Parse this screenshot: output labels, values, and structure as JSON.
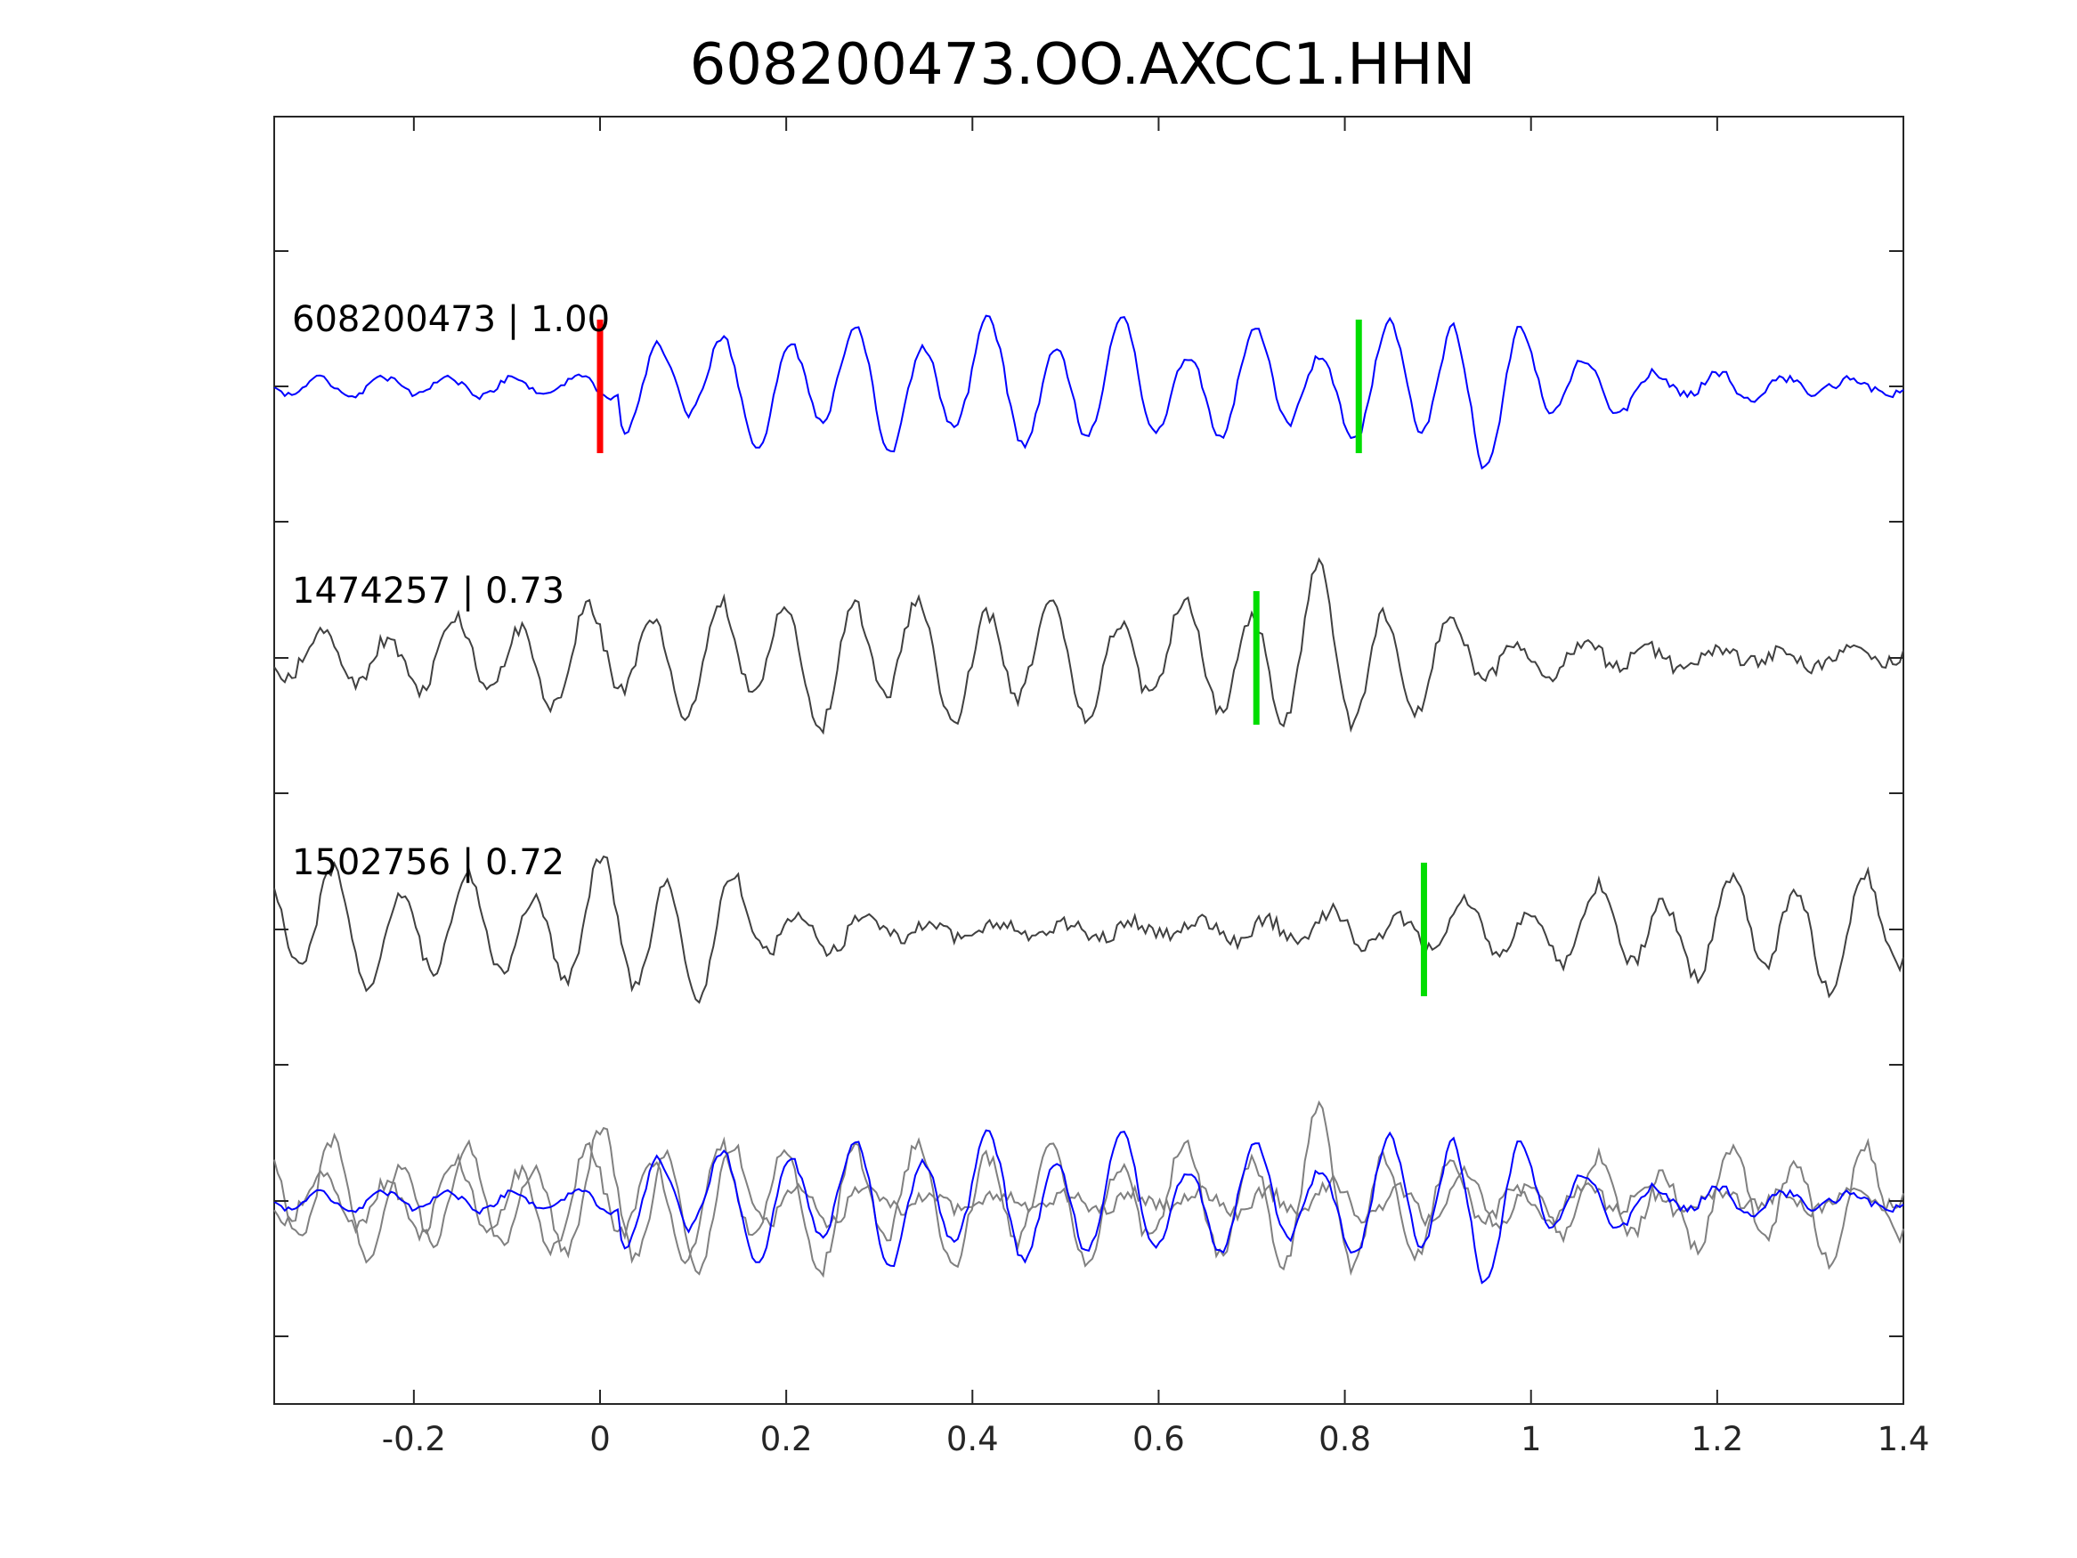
{
  "chart_data": {
    "type": "line",
    "title": "608200473.OO.AXCC1.HHN",
    "xlabel": "",
    "ylabel": "",
    "xlim": [
      -0.35,
      1.4
    ],
    "x_ticks": [
      "-0.2",
      "0",
      "0.2",
      "0.4",
      "0.6",
      "0.8",
      "1",
      "1.2",
      "1.4"
    ],
    "x_tick_values": [
      -0.2,
      0,
      0.2,
      0.4,
      0.6,
      0.8,
      1.0,
      1.2,
      1.4
    ],
    "y_ticks_labeled": false,
    "grid": false,
    "colors": {
      "reference": "#0000ff",
      "neighbor": "#404040",
      "overlay_neighbor": "#808080",
      "reference_pick": "#ff0000",
      "shifted_pick": "#00dd00",
      "axes": "#262626"
    },
    "traces": [
      {
        "label": "608200473 | 1.00",
        "event_id": "608200473",
        "correlation": 1.0,
        "role": "reference",
        "pick_time": 0.0,
        "pick_color": "red",
        "secondary_pick_time": 0.815,
        "secondary_pick_color": "green"
      },
      {
        "label": "1474257 | 0.73",
        "event_id": "1474257",
        "correlation": 0.73,
        "role": "neighbor",
        "pick_time": 0.705,
        "pick_color": "green"
      },
      {
        "label": "1502756 | 0.72",
        "event_id": "1502756",
        "correlation": 0.72,
        "role": "neighbor",
        "pick_time": 0.885,
        "pick_color": "green"
      }
    ],
    "overlay": {
      "description_key": "stack",
      "series": [
        "608200473",
        "1474257",
        "1502756"
      ]
    }
  }
}
